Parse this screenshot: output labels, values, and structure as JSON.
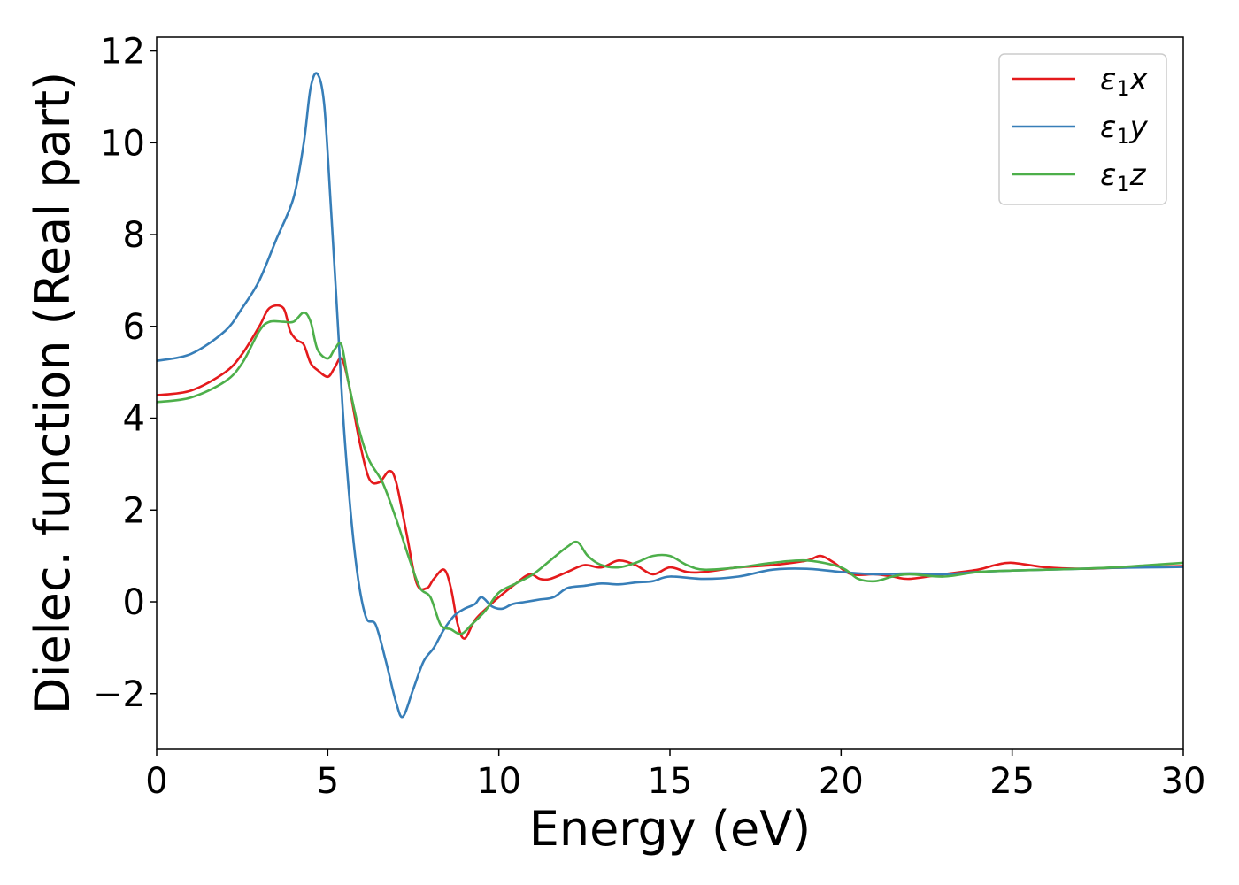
{
  "chart_data": {
    "type": "line",
    "xlabel": "Energy (eV)",
    "ylabel": "Dielec. function (Real part)",
    "xlim": [
      0,
      30
    ],
    "ylim": [
      -3.2,
      12.3
    ],
    "xticks": [
      "0",
      "5",
      "10",
      "15",
      "20",
      "25",
      "30"
    ],
    "yticks": [
      "−2",
      "0",
      "2",
      "4",
      "6",
      "8",
      "10",
      "12"
    ],
    "grid": false,
    "legend_position": "top-right",
    "series": [
      {
        "name": "ε₁x",
        "legend_base": "ε",
        "legend_sub": "1",
        "legend_var": "x",
        "color": "#e41a1c",
        "x": [
          0,
          1,
          2,
          2.5,
          3,
          3.3,
          3.7,
          3.9,
          4.1,
          4.3,
          4.5,
          4.7,
          5.0,
          5.2,
          5.4,
          5.6,
          5.9,
          6.2,
          6.5,
          6.8,
          7.0,
          7.3,
          7.6,
          7.9,
          8.1,
          8.4,
          8.6,
          8.8,
          9.0,
          9.3,
          9.7,
          10.0,
          10.5,
          10.9,
          11.2,
          11.5,
          12.0,
          12.5,
          13.0,
          13.5,
          14.0,
          14.5,
          15.0,
          15.5,
          16.0,
          17.0,
          18.0,
          19.0,
          19.4,
          19.8,
          20.3,
          21.0,
          21.5,
          22.0,
          23.0,
          24.0,
          24.5,
          25.0,
          26.0,
          27.0,
          28.0,
          29.0,
          30.0
        ],
        "y": [
          4.5,
          4.6,
          5.0,
          5.4,
          6.0,
          6.4,
          6.4,
          5.9,
          5.7,
          5.6,
          5.2,
          5.05,
          4.9,
          5.1,
          5.3,
          4.8,
          3.6,
          2.7,
          2.6,
          2.85,
          2.6,
          1.5,
          0.4,
          0.3,
          0.5,
          0.7,
          0.3,
          -0.5,
          -0.8,
          -0.4,
          -0.1,
          0.1,
          0.4,
          0.6,
          0.5,
          0.5,
          0.65,
          0.8,
          0.75,
          0.9,
          0.8,
          0.6,
          0.75,
          0.65,
          0.65,
          0.75,
          0.8,
          0.9,
          1.0,
          0.85,
          0.6,
          0.6,
          0.55,
          0.5,
          0.6,
          0.7,
          0.8,
          0.85,
          0.75,
          0.72,
          0.74,
          0.76,
          0.78
        ]
      },
      {
        "name": "ε₁y",
        "legend_base": "ε",
        "legend_sub": "1",
        "legend_var": "y",
        "color": "#377eb8",
        "x": [
          0,
          1,
          2,
          2.5,
          3,
          3.5,
          4.0,
          4.3,
          4.5,
          4.7,
          4.9,
          5.1,
          5.3,
          5.5,
          5.8,
          6.1,
          6.4,
          6.7,
          7.0,
          7.2,
          7.5,
          7.8,
          8.1,
          8.4,
          8.7,
          9.0,
          9.3,
          9.5,
          9.8,
          10.1,
          10.4,
          10.8,
          11.2,
          11.6,
          12.0,
          12.5,
          13.0,
          13.5,
          14.0,
          14.5,
          15.0,
          16.0,
          17.0,
          18.0,
          19.0,
          20.0,
          21.0,
          22.0,
          23.0,
          24.0,
          25.0,
          26.0,
          27.0,
          28.0,
          29.0,
          30.0
        ],
        "y": [
          5.25,
          5.4,
          5.9,
          6.4,
          7.0,
          7.9,
          8.8,
          10.0,
          11.2,
          11.5,
          10.8,
          8.5,
          6.0,
          3.5,
          1.0,
          -0.3,
          -0.5,
          -1.3,
          -2.2,
          -2.5,
          -1.9,
          -1.3,
          -1.0,
          -0.6,
          -0.3,
          -0.15,
          -0.05,
          0.1,
          -0.1,
          -0.15,
          -0.05,
          0.0,
          0.05,
          0.1,
          0.3,
          0.35,
          0.4,
          0.38,
          0.42,
          0.45,
          0.55,
          0.5,
          0.55,
          0.7,
          0.72,
          0.65,
          0.6,
          0.62,
          0.6,
          0.65,
          0.68,
          0.7,
          0.72,
          0.74,
          0.75,
          0.76
        ]
      },
      {
        "name": "ε₁z",
        "legend_base": "ε",
        "legend_sub": "1",
        "legend_var": "z",
        "color": "#4daf4a",
        "x": [
          0,
          1,
          2,
          2.5,
          3,
          3.3,
          3.7,
          4.0,
          4.3,
          4.5,
          4.7,
          5.0,
          5.2,
          5.4,
          5.6,
          5.9,
          6.2,
          6.6,
          7.0,
          7.4,
          7.7,
          8.0,
          8.3,
          8.6,
          8.9,
          9.2,
          9.6,
          10.0,
          10.5,
          11.0,
          11.5,
          12.0,
          12.3,
          12.6,
          13.0,
          13.5,
          14.0,
          14.5,
          15.0,
          15.5,
          16.0,
          17.0,
          18.0,
          19.0,
          20.0,
          20.5,
          21.0,
          21.5,
          22.0,
          23.0,
          24.0,
          25.0,
          26.0,
          27.0,
          28.0,
          29.0,
          30.0
        ],
        "y": [
          4.35,
          4.45,
          4.8,
          5.2,
          5.9,
          6.1,
          6.1,
          6.1,
          6.3,
          6.1,
          5.5,
          5.3,
          5.5,
          5.6,
          4.8,
          3.8,
          3.1,
          2.6,
          1.8,
          0.9,
          0.3,
          0.1,
          -0.5,
          -0.6,
          -0.7,
          -0.5,
          -0.2,
          0.2,
          0.4,
          0.6,
          0.9,
          1.2,
          1.3,
          1.0,
          0.8,
          0.75,
          0.85,
          1.0,
          1.0,
          0.8,
          0.7,
          0.75,
          0.85,
          0.9,
          0.75,
          0.5,
          0.45,
          0.55,
          0.6,
          0.55,
          0.65,
          0.68,
          0.7,
          0.72,
          0.75,
          0.8,
          0.85
        ]
      }
    ]
  }
}
